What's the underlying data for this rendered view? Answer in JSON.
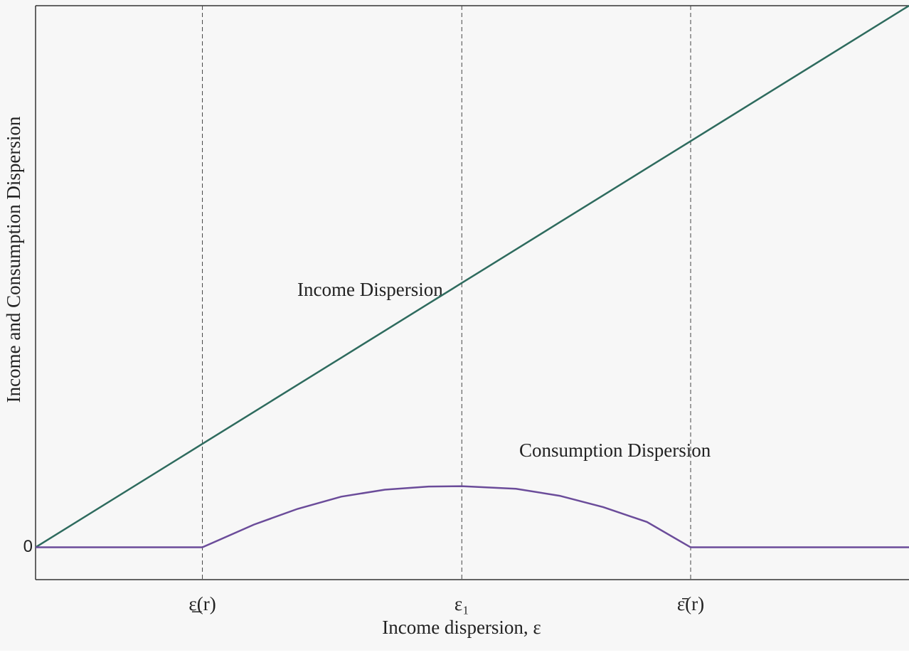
{
  "chart_data": {
    "type": "line",
    "x_label": "Income dispersion, ε",
    "y_label": "Income and Consumption Dispersion",
    "annotations": [
      "Income Dispersion",
      "Consumption Dispersion"
    ],
    "x": [
      0,
      19.1,
      25,
      30,
      35,
      40,
      45,
      48.8,
      55,
      60,
      65,
      70,
      75,
      100
    ],
    "series": [
      {
        "name": "Income Dispersion",
        "color": "#2e6b5e",
        "values": [
          0,
          11.84,
          15.5,
          18.6,
          21.7,
          24.8,
          27.9,
          30.26,
          34.1,
          37.2,
          40.3,
          43.4,
          46.5,
          62
        ]
      },
      {
        "name": "Consumption Dispersion",
        "color": "#6b4c9a",
        "values": [
          0,
          0,
          2.6,
          4.4,
          5.8,
          6.6,
          6.95,
          7.0,
          6.7,
          5.9,
          4.6,
          2.9,
          0,
          0
        ]
      }
    ],
    "xlim": [
      0,
      100
    ],
    "ylim": [
      -3.7,
      62
    ],
    "xticks": [
      {
        "value": 19.1,
        "label": "ε̲(r)"
      },
      {
        "value": 48.8,
        "label": "ε₁"
      },
      {
        "value": 75,
        "label": "ε̄(r)"
      }
    ],
    "yticks": [
      0
    ],
    "grid": false
  }
}
